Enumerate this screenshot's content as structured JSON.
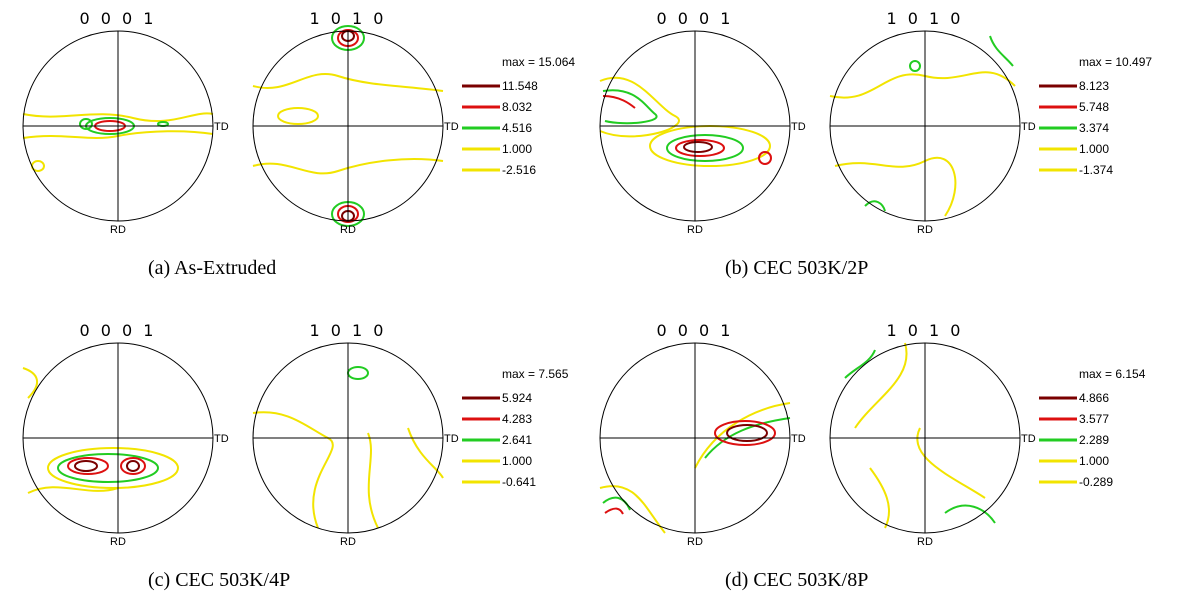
{
  "contour_colors": [
    "#7a0000",
    "#dd1010",
    "#22cc22",
    "#f2e400",
    "#f2e400"
  ],
  "panels": [
    {
      "caption": "(a) As-Extruded",
      "figures": [
        {
          "title": "0 0 0 1",
          "x_label": "TD",
          "y_label": "RD"
        },
        {
          "title": "1 0 1 0",
          "x_label": "TD",
          "y_label": "RD"
        }
      ],
      "legend": {
        "max": "max = 15.064",
        "levels": [
          "11.548",
          "8.032",
          "4.516",
          "1.000",
          "-2.516"
        ]
      }
    },
    {
      "caption": "(b) CEC 503K/2P",
      "figures": [
        {
          "title": "0 0 0 1",
          "x_label": "TD",
          "y_label": "RD"
        },
        {
          "title": "1 0 1 0",
          "x_label": "TD",
          "y_label": "RD"
        }
      ],
      "legend": {
        "max": "max = 10.497",
        "levels": [
          "8.123",
          "5.748",
          "3.374",
          "1.000",
          "-1.374"
        ]
      }
    },
    {
      "caption": "(c) CEC 503K/4P",
      "figures": [
        {
          "title": "0 0 0 1",
          "x_label": "TD",
          "y_label": "RD"
        },
        {
          "title": "1 0 1 0",
          "x_label": "TD",
          "y_label": "RD"
        }
      ],
      "legend": {
        "max": "max = 7.565",
        "levels": [
          "5.924",
          "4.283",
          "2.641",
          "1.000",
          "-0.641"
        ]
      }
    },
    {
      "caption": "(d) CEC 503K/8P",
      "figures": [
        {
          "title": "0 0 0 1",
          "x_label": "TD",
          "y_label": "RD"
        },
        {
          "title": "1 0 1 0",
          "x_label": "TD",
          "y_label": "RD"
        }
      ],
      "legend": {
        "max": "max = 6.154",
        "levels": [
          "4.866",
          "3.577",
          "2.289",
          "1.000",
          "-0.289"
        ]
      }
    }
  ]
}
